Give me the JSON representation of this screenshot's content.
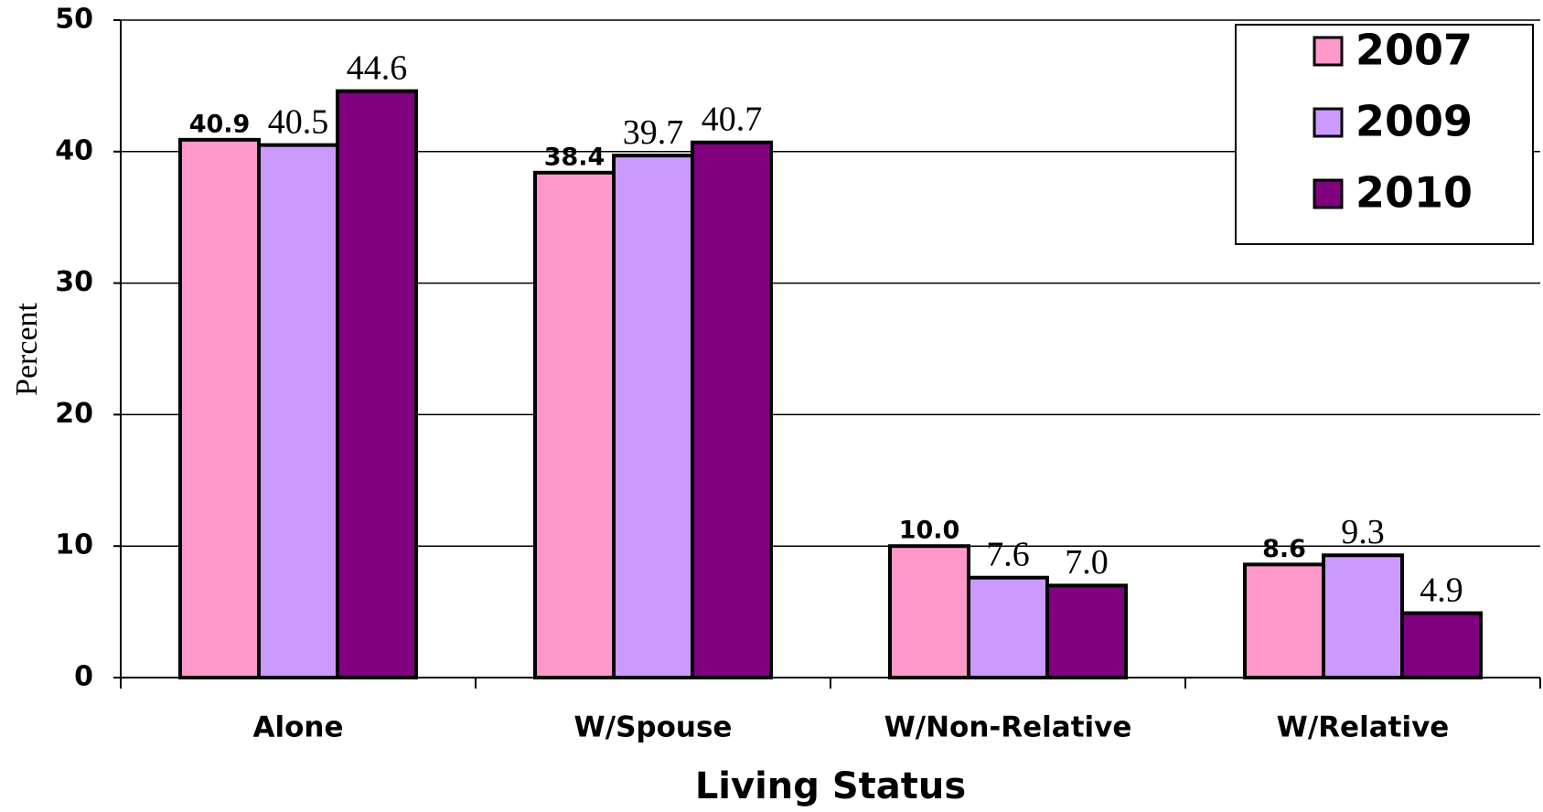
{
  "chart_data": {
    "type": "bar",
    "x_label": "Living Status",
    "y_label": "Percent",
    "categories": [
      "Alone",
      "W/Spouse",
      "W/Non-Relative",
      "W/Relative"
    ],
    "series": [
      {
        "name": "2007",
        "color": "#FF99CC",
        "values": [
          40.9,
          38.4,
          10.0,
          8.6
        ],
        "value_labels": [
          "40.9",
          "38.4",
          "10.0",
          "8.6"
        ]
      },
      {
        "name": "2009",
        "color": "#CC99FF",
        "values": [
          40.5,
          39.7,
          7.6,
          9.3
        ],
        "value_labels": [
          "40.5",
          "39.7",
          "7.6",
          "9.3"
        ]
      },
      {
        "name": "2010",
        "color": "#800080",
        "values": [
          44.6,
          40.7,
          7.0,
          4.9
        ],
        "value_labels": [
          "44.6",
          "40.7",
          "7.0",
          "4.9"
        ]
      }
    ],
    "ylim": [
      0,
      50
    ],
    "yticks": [
      0,
      10,
      20,
      30,
      40,
      50
    ],
    "grid": true,
    "legend": "top-right"
  }
}
